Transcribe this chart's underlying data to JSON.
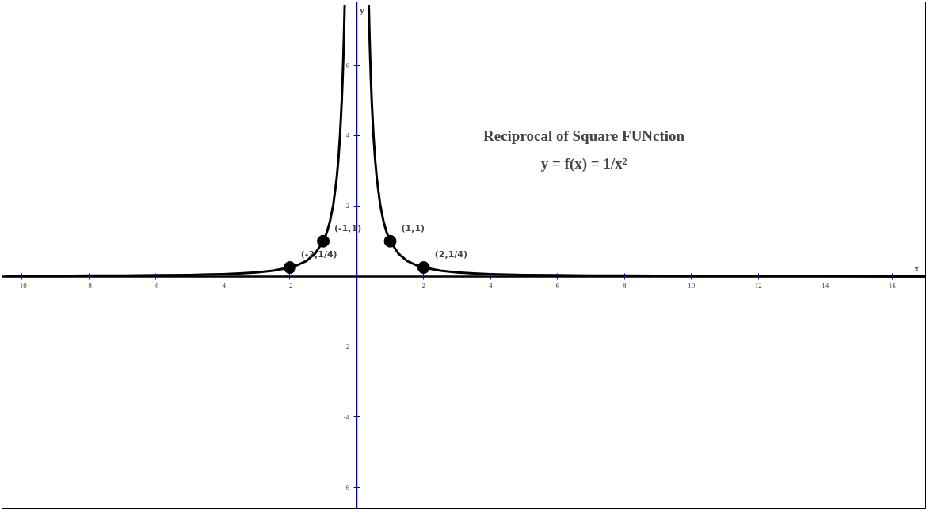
{
  "chart_data": {
    "type": "line",
    "title": "Reciprocal of Square FUNction",
    "subtitle": "y = f(x) = 1/x²",
    "xlabel": "x",
    "ylabel": "y",
    "xlim": [
      -10.6,
      17
    ],
    "ylim": [
      -6.6,
      7.8
    ],
    "xticks": [
      -10,
      -8,
      -6,
      -4,
      -2,
      2,
      4,
      6,
      8,
      10,
      12,
      14,
      16
    ],
    "yticks": [
      -6,
      -4,
      -2,
      2,
      4,
      6
    ],
    "grid": false,
    "series": [
      {
        "marker": "none",
        "color": "#000000",
        "x": [
          -10.5,
          -9,
          -8,
          -7,
          -6,
          -5,
          -4,
          -3.5,
          -3,
          -2.5,
          -2,
          -1.75,
          -1.5,
          -1.25,
          -1,
          -0.9,
          -0.8,
          -0.7,
          -0.6,
          -0.55,
          -0.5,
          -0.45,
          -0.42,
          -0.4,
          -0.38,
          -0.36,
          null,
          0.36,
          0.38,
          0.4,
          0.42,
          0.45,
          0.5,
          0.55,
          0.6,
          0.7,
          0.8,
          0.9,
          1,
          1.25,
          1.5,
          1.75,
          2,
          2.5,
          3,
          3.5,
          4,
          5,
          6,
          7,
          8,
          10,
          12,
          14,
          16,
          17
        ],
        "values": [
          0.01,
          0.01,
          0.02,
          0.02,
          0.03,
          0.04,
          0.06,
          0.08,
          0.11,
          0.16,
          0.25,
          0.33,
          0.44,
          0.64,
          1,
          1.23,
          1.56,
          2.04,
          2.78,
          3.31,
          4,
          4.94,
          5.67,
          6.25,
          6.93,
          7.72,
          null,
          7.72,
          6.93,
          6.25,
          5.67,
          4.94,
          4,
          3.31,
          2.78,
          2.04,
          1.56,
          1.23,
          1,
          0.64,
          0.44,
          0.33,
          0.25,
          0.16,
          0.11,
          0.08,
          0.06,
          0.04,
          0.03,
          0.02,
          0.02,
          0.01,
          0.01,
          0.01,
          0.0,
          0.0
        ]
      },
      {
        "type": "scatter",
        "marker": "circle",
        "color": "#000000",
        "x": [
          -2,
          -1,
          1,
          2
        ],
        "values": [
          0.25,
          1,
          1,
          0.25
        ]
      }
    ],
    "annotations": [
      {
        "text": "(-2,1/4)",
        "x": -2,
        "y": 0.25
      },
      {
        "text": "(-1,1)",
        "x": -1,
        "y": 1
      },
      {
        "text": "(1,1)",
        "x": 1,
        "y": 1
      },
      {
        "text": "(2,1/4)",
        "x": 2,
        "y": 0.25
      }
    ]
  }
}
